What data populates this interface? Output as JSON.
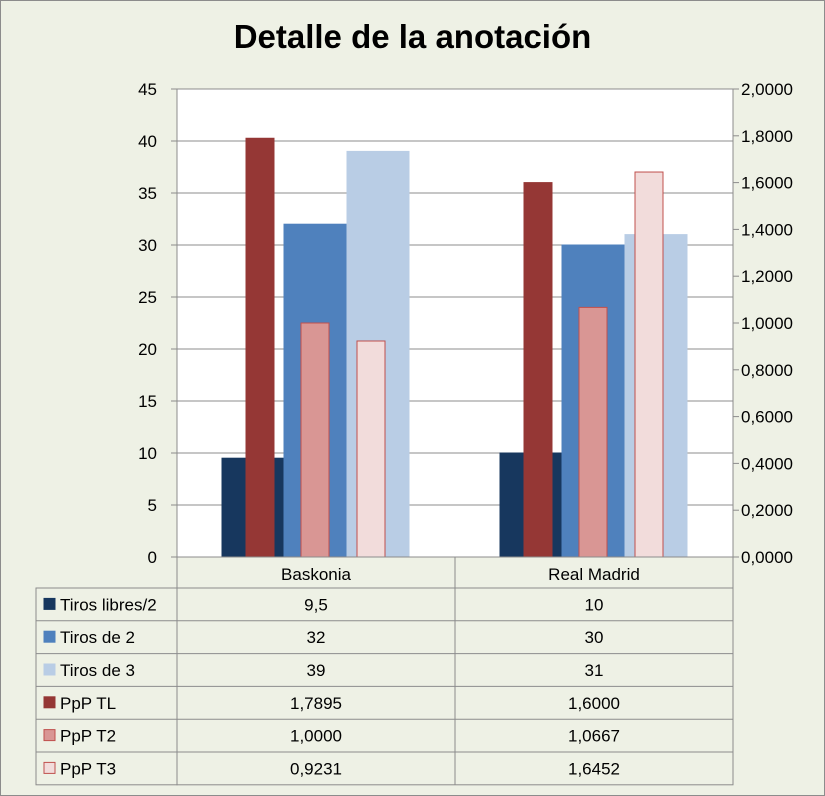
{
  "chart_data": {
    "type": "bar",
    "title": "Detalle de la anotación",
    "categories": [
      "Baskonia",
      "Real Madrid"
    ],
    "axes": {
      "left": {
        "min": 0,
        "max": 45,
        "step": 5,
        "ticks": [
          "0",
          "5",
          "10",
          "15",
          "20",
          "25",
          "30",
          "35",
          "40",
          "45"
        ]
      },
      "right": {
        "min": 0,
        "max": 2,
        "step": 0.2,
        "ticks": [
          "0,0000",
          "0,2000",
          "0,4000",
          "0,6000",
          "0,8000",
          "1,0000",
          "1,2000",
          "1,4000",
          "1,6000",
          "1,8000",
          "2,0000"
        ]
      }
    },
    "series": [
      {
        "name": "Tiros libres/2",
        "axis": "left",
        "color": "#17375e",
        "border": "#17375e",
        "values": [
          9.5,
          10
        ],
        "labels": [
          "9,5",
          "10"
        ]
      },
      {
        "name": "Tiros de 2",
        "axis": "left",
        "color": "#4f81bd",
        "border": "#4f81bd",
        "values": [
          32,
          30
        ],
        "labels": [
          "32",
          "30"
        ]
      },
      {
        "name": "Tiros de 3",
        "axis": "left",
        "color": "#b9cde5",
        "border": "#b9cde5",
        "values": [
          39,
          31
        ],
        "labels": [
          "39",
          "31"
        ]
      },
      {
        "name": "PpP TL",
        "axis": "right",
        "color": "#953735",
        "border": "#953735",
        "values": [
          1.7895,
          1.6
        ],
        "labels": [
          "1,7895",
          "1,6000"
        ]
      },
      {
        "name": "PpP T2",
        "axis": "right",
        "color": "#d99694",
        "border": "#c0504d",
        "values": [
          1.0,
          1.0667
        ],
        "labels": [
          "1,0000",
          "1,0667"
        ]
      },
      {
        "name": "PpP T3",
        "axis": "right",
        "color": "#f2dcdb",
        "border": "#c0504d",
        "values": [
          0.9231,
          1.6452
        ],
        "labels": [
          "0,9231",
          "1,6452"
        ]
      }
    ]
  }
}
